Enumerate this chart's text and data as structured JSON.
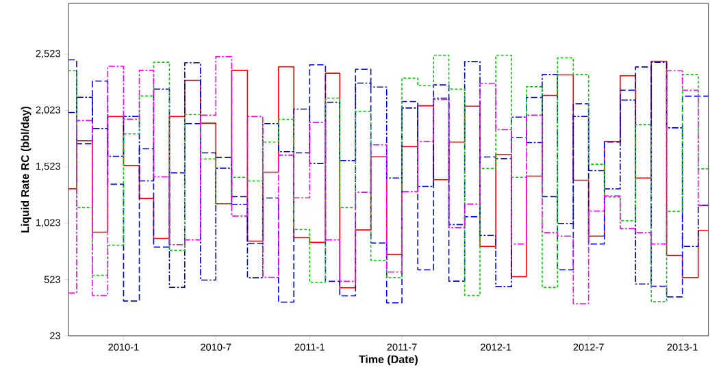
{
  "chart_data": {
    "type": "step",
    "xlabel": "Time (Date)",
    "ylabel": "Liquid Rate RC (bbl/day)",
    "x": [
      "2009-09-15",
      "2009-10",
      "2009-11",
      "2009-12",
      "2010-01",
      "2010-02",
      "2010-03",
      "2010-04",
      "2010-05",
      "2010-06",
      "2010-07",
      "2010-08",
      "2010-09",
      "2010-10",
      "2010-11",
      "2010-12",
      "2011-01",
      "2011-02",
      "2011-03",
      "2011-04",
      "2011-05",
      "2011-06",
      "2011-07",
      "2011-08",
      "2011-09",
      "2011-10",
      "2011-11",
      "2011-12",
      "2012-01",
      "2012-02",
      "2012-03",
      "2012-04",
      "2012-05",
      "2012-06",
      "2012-07",
      "2012-08",
      "2012-09",
      "2012-10",
      "2012-11",
      "2012-12",
      "2013-01",
      "2013-02",
      "2013-02-21"
    ],
    "xlim": [
      "2009-09-15",
      "2013-02-21"
    ],
    "xticks": [
      {
        "value": "2010-01",
        "label": "2010-1"
      },
      {
        "value": "2010-07",
        "label": "2010-7"
      },
      {
        "value": "2011-01",
        "label": "2011-1"
      },
      {
        "value": "2011-07",
        "label": "2011-7"
      },
      {
        "value": "2012-01",
        "label": "2012-1"
      },
      {
        "value": "2012-07",
        "label": "2012-7"
      },
      {
        "value": "2013-01",
        "label": "2013-1"
      }
    ],
    "ylim": [
      23,
      2973
    ],
    "yticks": [
      23,
      {
        "value": 523,
        "label": "523"
      },
      {
        "value": 1023,
        "label": "1,023"
      },
      {
        "value": 1523,
        "label": "1,523"
      },
      {
        "value": 2023,
        "label": "2,023"
      },
      {
        "value": 2523,
        "label": "2,523"
      }
    ],
    "grid": false,
    "marker": "none",
    "series": [
      {
        "color": "#ff0000",
        "line_style": "solid",
        "values": [
          1329,
          1754,
          943,
          1970,
          1535,
          1242,
          888,
          1970,
          2290,
          1910,
          1196,
          2379,
          864,
          1475,
          2411,
          894,
          852,
          2353,
          449,
          963,
          1612,
          746,
          1703,
          2065,
          1408,
          1742,
          2061,
          817,
          1633,
          548,
          1440,
          2157,
          2339,
          1404,
          908,
          1748,
          2331,
          1424,
          2460,
          736,
          540,
          959,
          959
        ]
      },
      {
        "color": "#0000ff",
        "line_style": "dashed",
        "values": [
          2472,
          1728,
          2284,
          1368,
          332,
          1683,
          811,
          1469,
          1906,
          1647,
          1606,
          1258,
          842,
          1246,
          322,
          1647,
          2428,
          506,
          378,
          2389,
          846,
          316,
          2102,
          609,
          2250,
          508,
          1080,
          1610,
          1596,
          1782,
          2138,
          1258,
          609,
          2082,
          838,
          1742,
          2203,
          2409,
          463,
          368,
          2150,
          2150,
          2150
        ]
      },
      {
        "color": "#0000cc",
        "line_style": "dashdot",
        "values": [
          2005,
          2140,
          1863,
          1616,
          1970,
          1398,
          2213,
          453,
          2446,
          518,
          1511,
          1190,
          538,
          1906,
          1657,
          2035,
          1552,
          2096,
          1578,
          2266,
          2231,
          1424,
          2045,
          1349,
          2132,
          1010,
          2456,
          914,
          459,
          1964,
          1738,
          2341,
          1020,
          1970,
          1489,
          1327,
          2116,
          483,
          2450,
          1869,
          817,
          1181,
          1181
        ]
      },
      {
        "color": "#00cc00",
        "line_style": "dotted",
        "values": [
          2375,
          1161,
          560,
          827,
          1815,
          2152,
          2450,
          781,
          1987,
          1594,
          1196,
          1430,
          1398,
          1742,
          1944,
          967,
          498,
          2132,
          1161,
          2015,
          692,
          540,
          2310,
          2243,
          2513,
          2213,
          382,
          1509,
          2513,
          1430,
          2233,
          453,
          2490,
          2341,
          1546,
          1256,
          1044,
          1898,
          326,
          1127,
          2341,
          1505,
          1505
        ]
      },
      {
        "color": "#ff00ff",
        "line_style": "dashdot",
        "values": [
          403,
          1934,
          382,
          2415,
          1946,
          2379,
          1434,
          832,
          874,
          1981,
          2500,
          1086,
          1970,
          542,
          1626,
          1248,
          1916,
          874,
          506,
          1297,
          1718,
          589,
          1303,
          1748,
          2120,
          983,
          1192,
          2264,
          1853,
          838,
          1981,
          939,
          908,
          308,
          1131,
          1266,
          975,
          939,
          838,
          2375,
          2203,
          1181,
          1181
        ]
      }
    ]
  }
}
